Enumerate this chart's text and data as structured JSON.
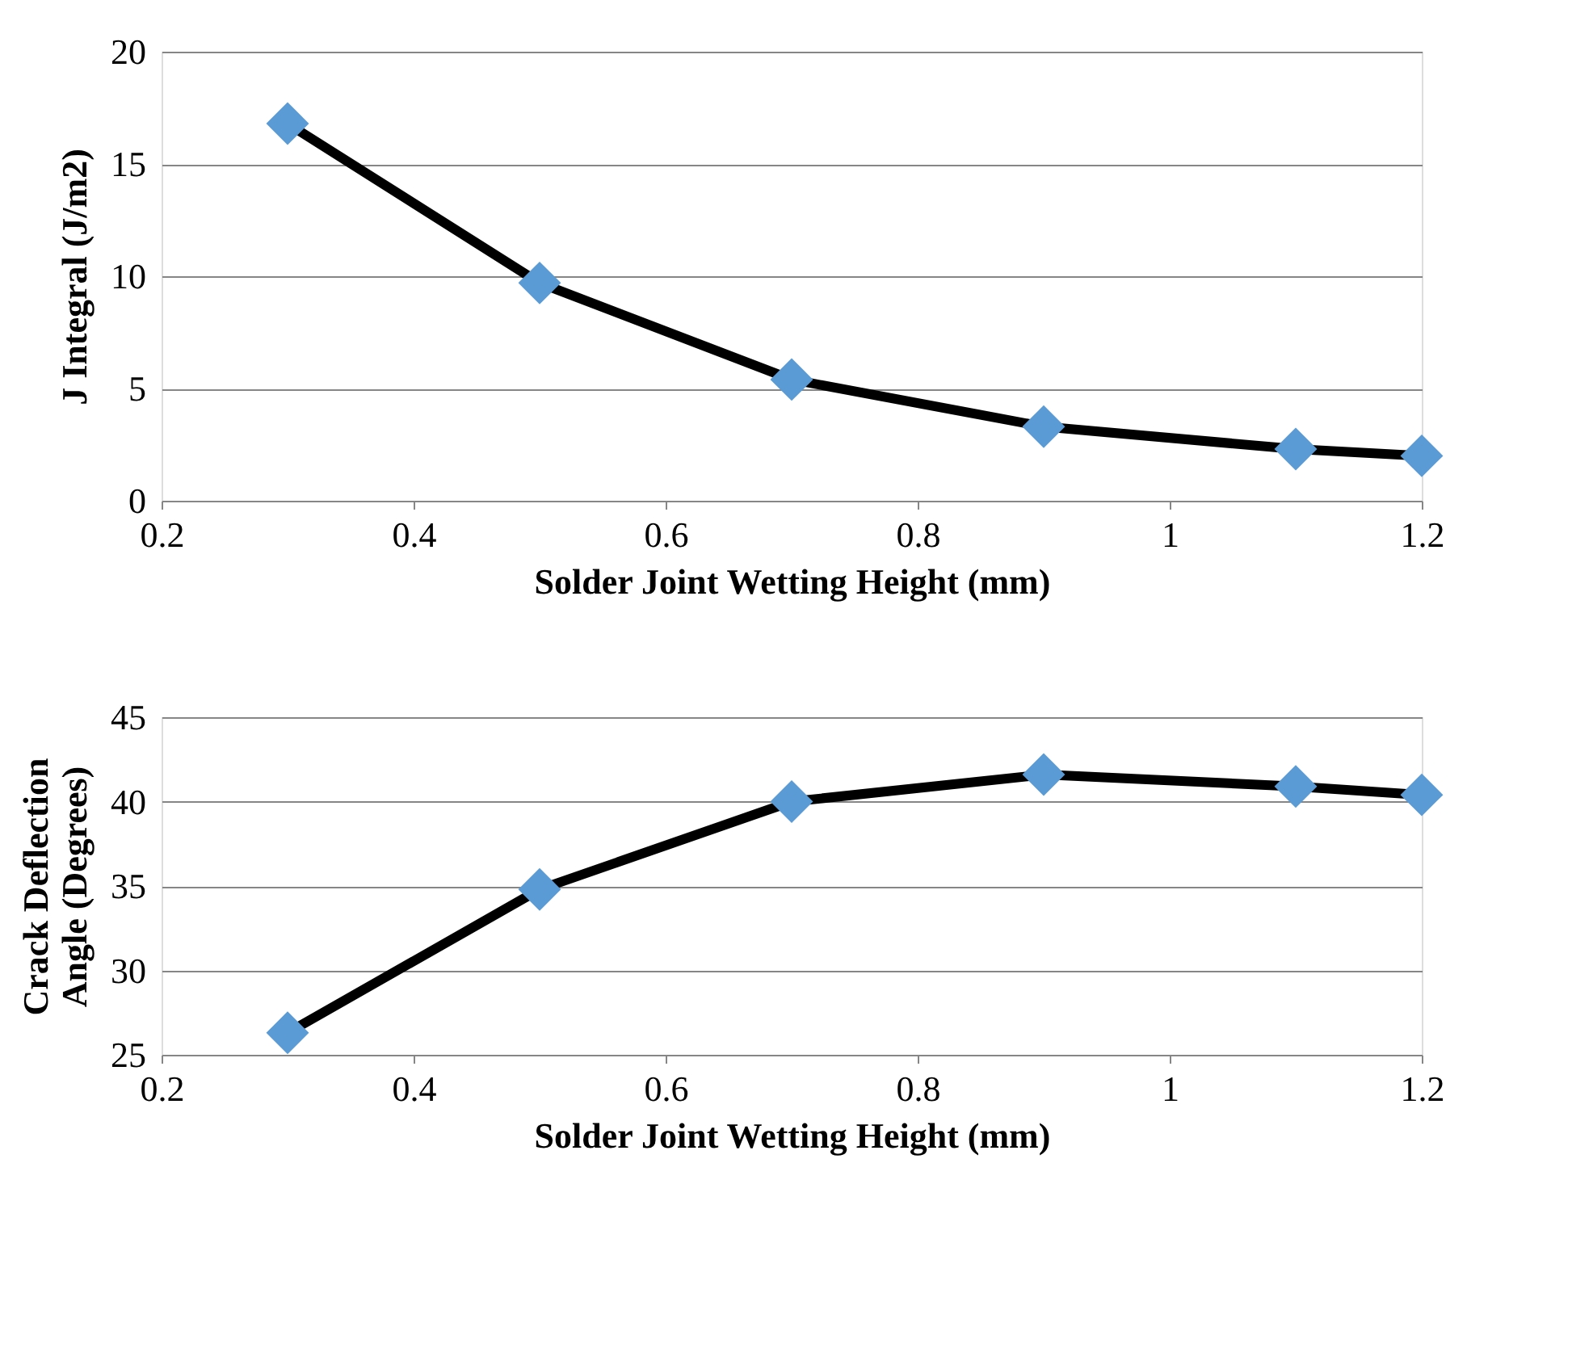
{
  "chart_data": [
    {
      "type": "line",
      "xlabel": "Solder Joint Wetting Height (mm)",
      "ylabel": "J Integral (J/m2)",
      "x": [
        0.3,
        0.5,
        0.7,
        0.9,
        1.1,
        1.2
      ],
      "series": [
        {
          "color": "#5b9bd5",
          "values": [
            16.8,
            9.7,
            5.4,
            3.3,
            2.3,
            2.0
          ]
        }
      ],
      "xlim": [
        0.2,
        1.2
      ],
      "xticks": [
        0.2,
        0.4,
        0.6,
        0.8,
        1,
        1.2
      ],
      "ylim": [
        0,
        20
      ],
      "yticks": [
        0,
        5,
        10,
        15,
        20
      ],
      "grid": "y",
      "marker": "diamond",
      "line_style": "solid"
    },
    {
      "type": "line",
      "xlabel": "Solder Joint Wetting Height (mm)",
      "ylabel": "Crack Deflection\nAngle  (Degrees)",
      "x": [
        0.3,
        0.5,
        0.7,
        0.9,
        1.1,
        1.2
      ],
      "series": [
        {
          "color": "#5b9bd5",
          "values": [
            26.3,
            34.8,
            40.0,
            41.6,
            40.9,
            40.4
          ]
        }
      ],
      "xlim": [
        0.2,
        1.2
      ],
      "xticks": [
        0.2,
        0.4,
        0.6,
        0.8,
        1,
        1.2
      ],
      "ylim": [
        25,
        45
      ],
      "yticks": [
        25,
        30,
        35,
        40,
        45
      ],
      "grid": "y",
      "marker": "diamond",
      "line_style": "solid"
    }
  ]
}
